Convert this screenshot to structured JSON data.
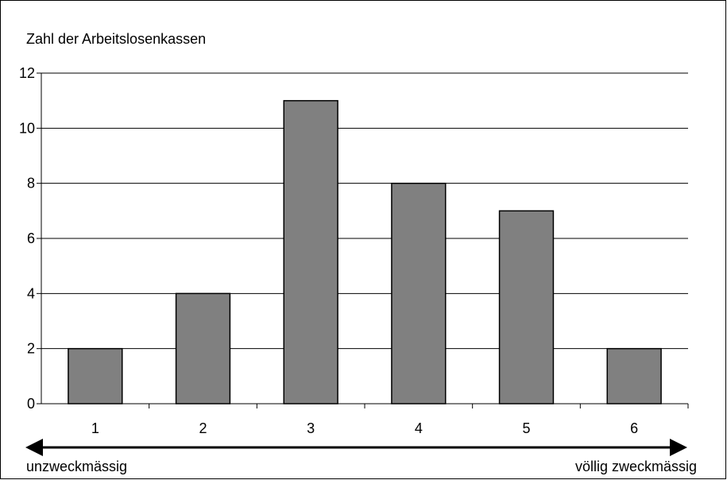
{
  "chart_data": {
    "type": "bar",
    "ylabel": "Zahl der Arbeitslosenkassen",
    "xlabel": "",
    "categories": [
      "1",
      "2",
      "3",
      "4",
      "5",
      "6"
    ],
    "values": [
      2,
      4,
      11,
      8,
      7,
      2
    ],
    "ylim": [
      0,
      12
    ],
    "yticks": [
      "0",
      "2",
      "4",
      "6",
      "8",
      "10",
      "12"
    ],
    "grid": true,
    "legend": "none",
    "bar_color": "#808080",
    "scale_left_label": "unzweckmässig",
    "scale_right_label": "völlig zweckmässig"
  }
}
